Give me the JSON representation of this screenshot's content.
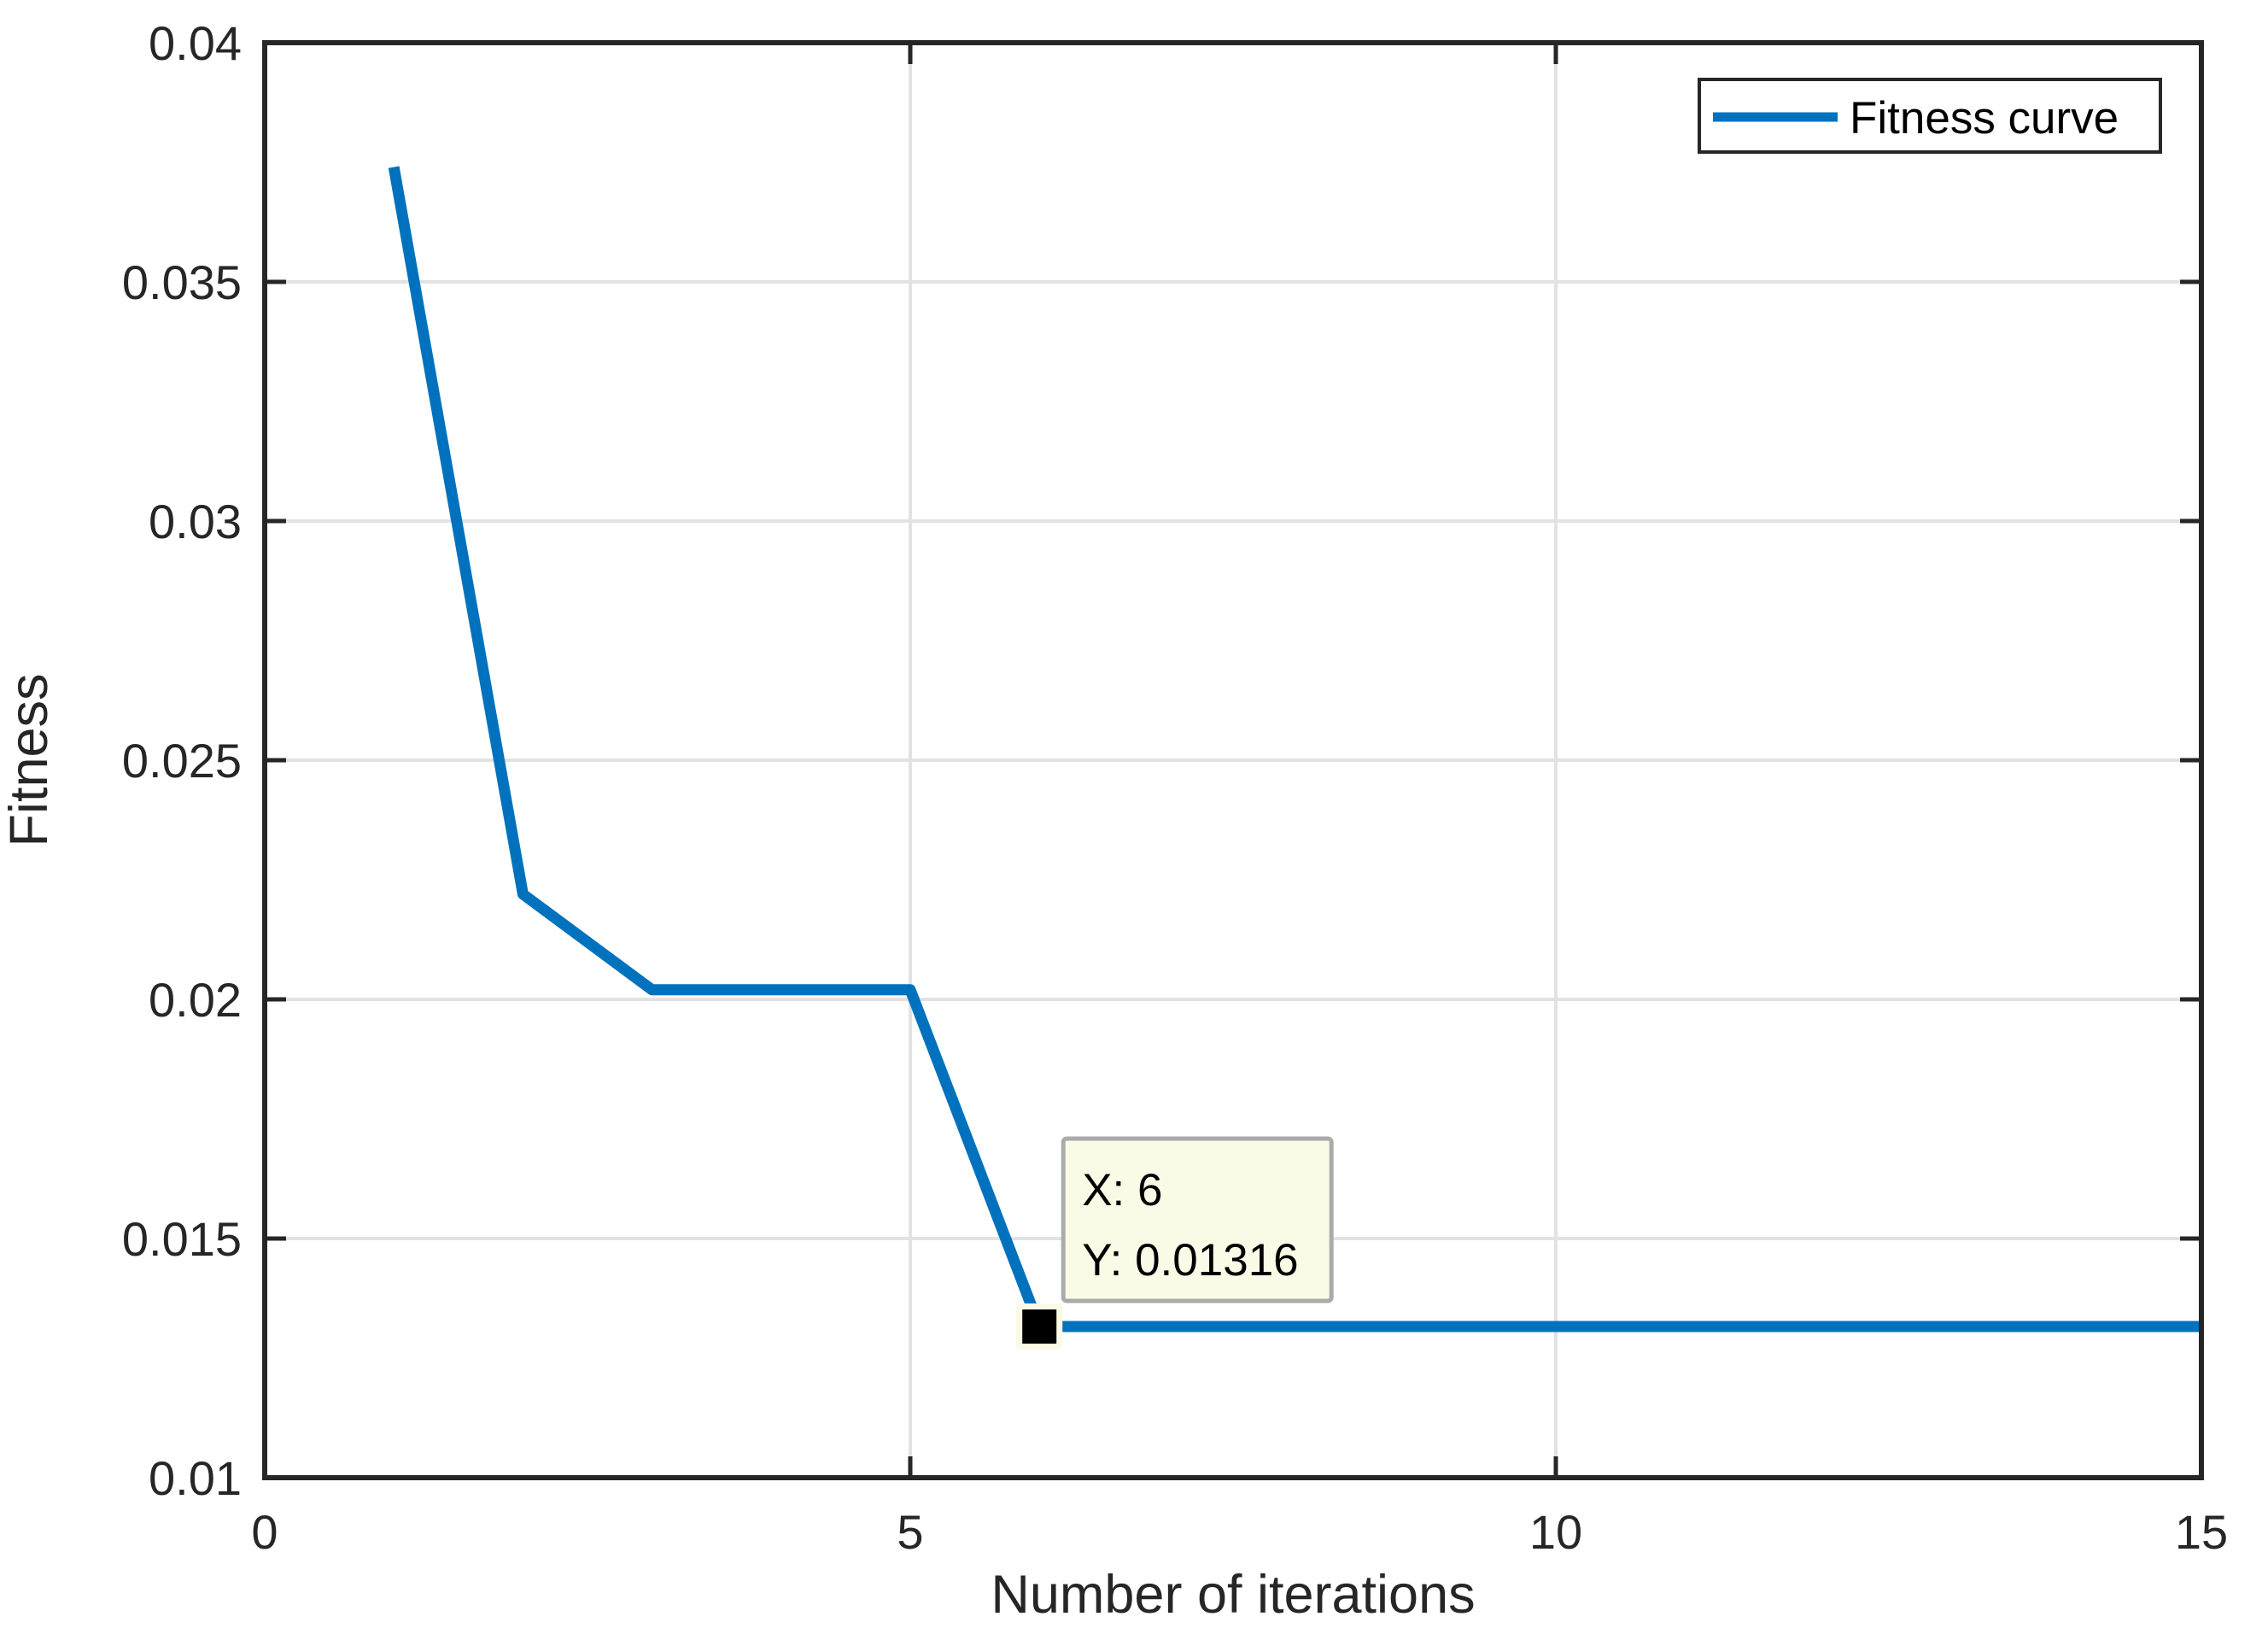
{
  "chart_data": {
    "type": "line",
    "title": "",
    "xlabel": "Number of iterations",
    "ylabel": "Fitness",
    "xlim": [
      0,
      15
    ],
    "ylim": [
      0.01,
      0.04
    ],
    "grid": true,
    "xticks": {
      "values": [
        0,
        5,
        10,
        15
      ],
      "labels": [
        "0",
        "5",
        "10",
        "15"
      ]
    },
    "yticks": {
      "values": [
        0.01,
        0.015,
        0.02,
        0.025,
        0.03,
        0.035,
        0.04
      ],
      "labels": [
        "0.01",
        "0.015",
        "0.02",
        "0.025",
        "0.03",
        "0.035",
        "0.04"
      ]
    },
    "legend": {
      "position": "top-right",
      "entries": [
        {
          "label": "Fitness curve",
          "color": "#0072BD"
        }
      ]
    },
    "series": [
      {
        "name": "Fitness curve",
        "x": [
          1,
          2,
          3,
          4,
          5,
          6,
          7,
          8,
          9,
          10,
          11,
          12,
          13,
          14,
          15
        ],
        "y": [
          0.0374,
          0.0222,
          0.0202,
          0.0202,
          0.0202,
          0.01316,
          0.01316,
          0.01316,
          0.01316,
          0.01316,
          0.01316,
          0.01316,
          0.01316,
          0.01316,
          0.01316
        ]
      }
    ],
    "datatip": {
      "x": 6,
      "y": 0.01316,
      "line1": "X: 6",
      "line2": "Y: 0.01316",
      "marker": "black-square"
    }
  },
  "colors": {
    "curve": "#0072BD",
    "axis": "#262626",
    "grid": "#E2E2E2",
    "background": "#FFFFFF",
    "datatip_bg": "#FAFAE6",
    "datatip_border": "#ABABAB",
    "marker": "#000000"
  }
}
